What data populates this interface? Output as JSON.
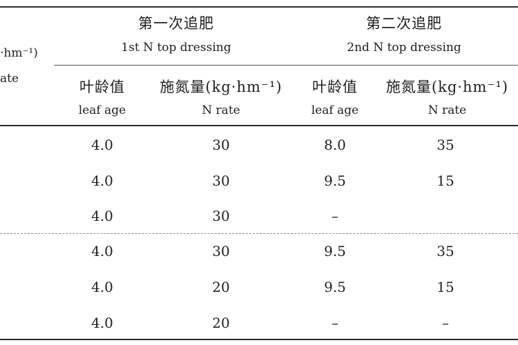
{
  "header": {
    "left_unit_fragment": "·hm⁻¹)",
    "left_rate_fragment": "ate",
    "first_group_cn": "第一次追肥",
    "first_group_en": "1st N top dressing",
    "second_group_cn": "第二次追肥",
    "second_group_en": "2nd N top dressing",
    "col1_cn": "叶龄值",
    "col1_en": "leaf age",
    "col2_cn": "施氮量(kg·hm⁻¹)",
    "col2_en": "N rate",
    "col3_cn": "叶龄值",
    "col3_en": "leaf age",
    "col4_cn": "施氮量(kg·hm⁻¹)",
    "col4_en": "N rate"
  },
  "rows": [
    [
      "4.0",
      "30",
      "8.0",
      "35"
    ],
    [
      "4.0",
      "30",
      "9.5",
      "15"
    ],
    [
      "4.0",
      "30",
      "–",
      ""
    ],
    [
      "4.0",
      "30",
      "9.5",
      "35"
    ],
    [
      "4.0",
      "20",
      "9.5",
      "15"
    ],
    [
      "4.0",
      "20",
      "–",
      "–"
    ]
  ]
}
